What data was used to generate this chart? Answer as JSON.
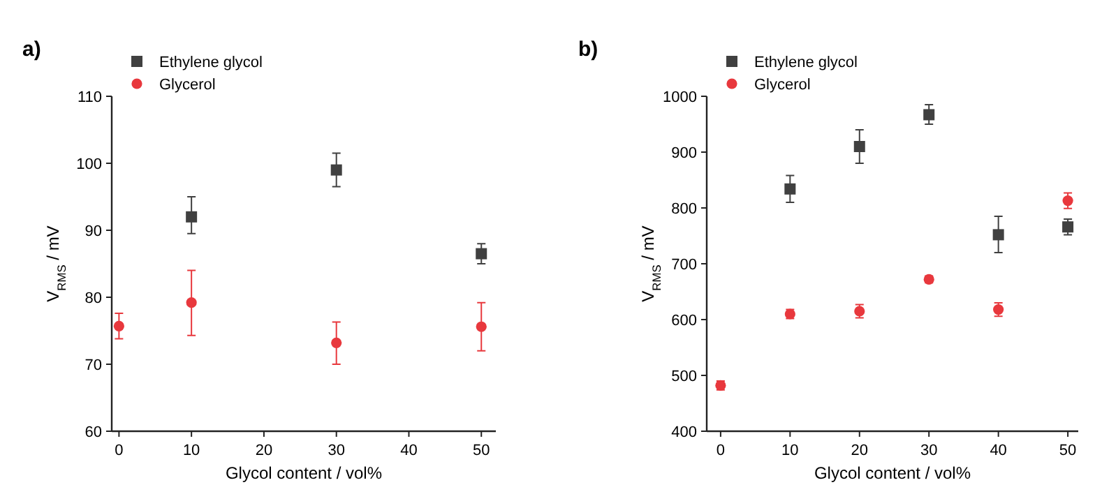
{
  "chart_data": [
    {
      "type": "scatter",
      "title": "a)",
      "xlabel": "Glycol content / vol%",
      "ylabel": "V$_{RMS}$ / mV",
      "xlim": [
        -1,
        52
      ],
      "ylim": [
        60,
        110
      ],
      "xticks": [
        0,
        10,
        20,
        30,
        40,
        50
      ],
      "yticks": [
        60,
        70,
        80,
        90,
        100,
        110
      ],
      "legend": "top left",
      "grid": false,
      "series": [
        {
          "name": "Ethylene glycol",
          "color": "#404040",
          "marker": "square",
          "x": [
            10,
            30,
            50
          ],
          "values": [
            92,
            99,
            86.5
          ],
          "errors": [
            [
              89.5,
              95
            ],
            [
              96.5,
              101.5
            ],
            [
              85,
              88
            ]
          ]
        },
        {
          "name": "Glycerol",
          "color": "#e8383d",
          "marker": "circle",
          "x": [
            0,
            10,
            30,
            50
          ],
          "values": [
            75.7,
            79.2,
            73.2,
            75.6
          ],
          "errors": [
            [
              73.8,
              77.6
            ],
            [
              74.3,
              84
            ],
            [
              70,
              76.3
            ],
            [
              72,
              79.2
            ]
          ]
        }
      ]
    },
    {
      "type": "scatter",
      "title": "b)",
      "xlabel": "Glycol content / vol%",
      "ylabel": "V$_{RMS}$ / mV",
      "xlim": [
        -2,
        51.5
      ],
      "ylim": [
        400,
        1000
      ],
      "xticks": [
        0,
        10,
        20,
        30,
        40,
        50
      ],
      "yticks": [
        400,
        500,
        600,
        700,
        800,
        900,
        1000
      ],
      "legend": "top left",
      "grid": false,
      "series": [
        {
          "name": "Ethylene glycol",
          "color": "#404040",
          "marker": "square",
          "x": [
            10,
            20,
            30,
            40,
            50
          ],
          "values": [
            834,
            910,
            967,
            752,
            766
          ],
          "errors": [
            [
              810,
              858
            ],
            [
              880,
              940
            ],
            [
              950,
              985
            ],
            [
              720,
              785
            ],
            [
              752,
              780
            ]
          ]
        },
        {
          "name": "Glycerol",
          "color": "#e8383d",
          "x": [
            0,
            10,
            20,
            30,
            40,
            50
          ],
          "values": [
            482,
            610,
            615,
            672,
            618,
            813
          ],
          "errors": [
            [
              474,
              490
            ],
            [
              602,
              618
            ],
            [
              603,
              627
            ],
            [
              666,
              678
            ],
            [
              606,
              630
            ],
            [
              799,
              827
            ]
          ]
        }
      ]
    }
  ]
}
